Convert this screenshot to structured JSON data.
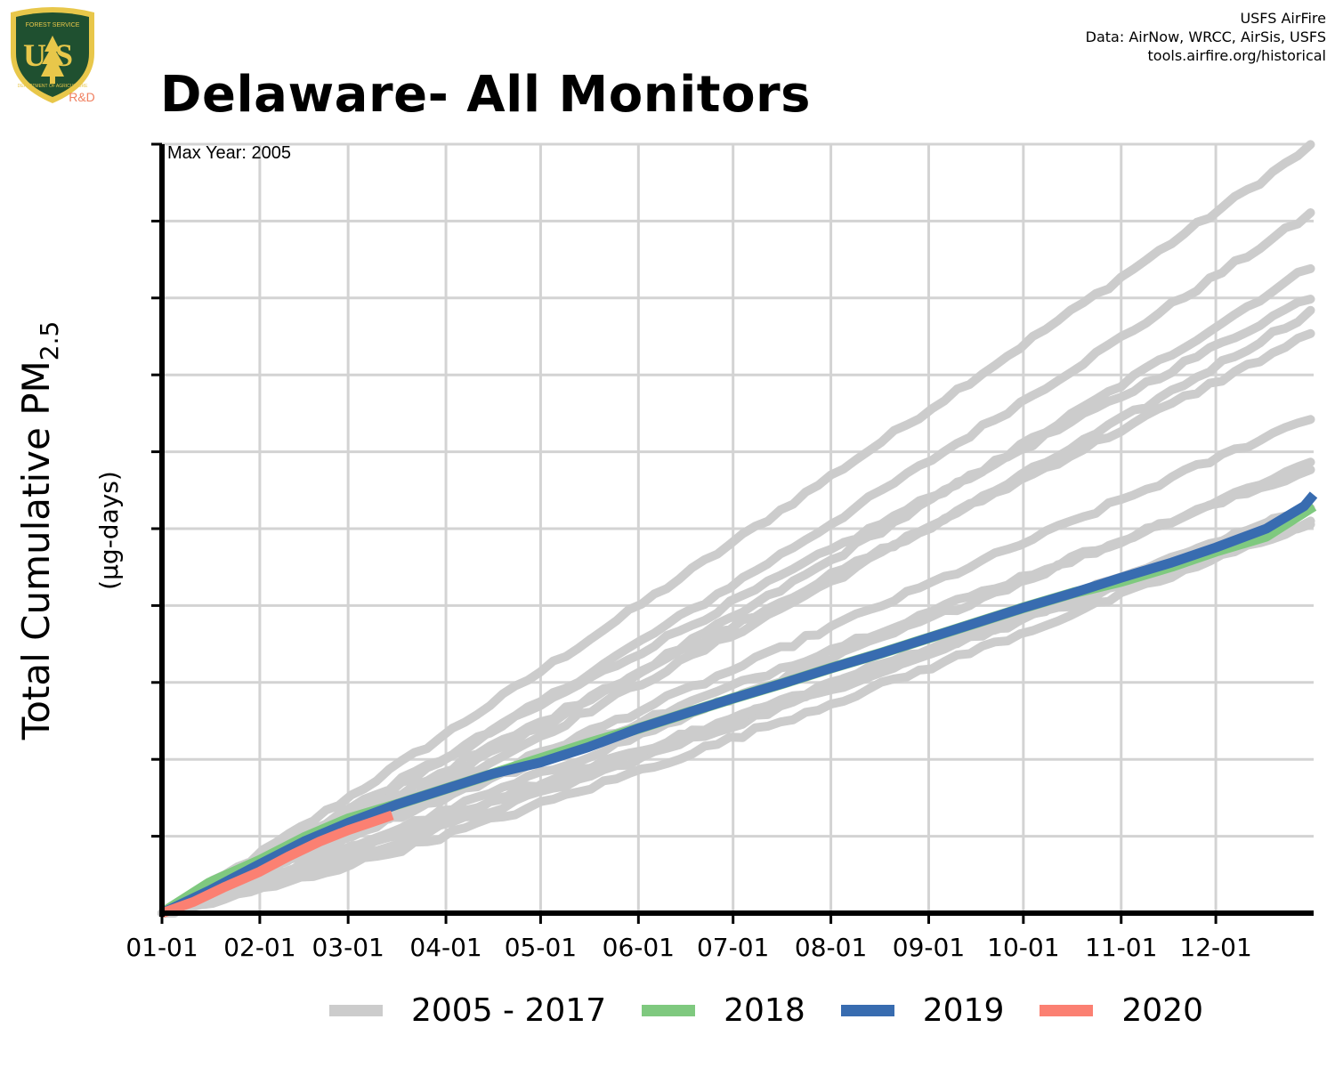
{
  "header": {
    "title": "Delaware- All Monitors",
    "credits": [
      "USFS AirFire",
      "Data: AirNow, WRCC, AirSis, USFS",
      "tools.airfire.org/historical"
    ],
    "logo": {
      "shield_text": "US",
      "top_text": "FOREST SERVICE",
      "bottom_text": "DEPARTMENT OF AGRICULTURE",
      "tag": "R&D"
    }
  },
  "colors": {
    "history": "#cccccc",
    "y2018": "#7fc97f",
    "y2019": "#386cb0",
    "y2020": "#fb8072",
    "grid": "#d3d3d3",
    "axis": "#000000",
    "logo_green": "#1f5030",
    "logo_gold": "#e8c74a",
    "tag": "#f08060"
  },
  "chart_data": {
    "type": "line",
    "annotation": "Max Year: 2005",
    "ylabel_main": "Total Cumulative PM",
    "ylabel_sub": "2.5",
    "ylabel_units": "(µg-days)",
    "x_ticks": [
      "01-01",
      "02-01",
      "03-01",
      "04-01",
      "05-01",
      "06-01",
      "07-01",
      "08-01",
      "09-01",
      "10-01",
      "11-01",
      "12-01"
    ],
    "x_tick_days": [
      0,
      31,
      59,
      90,
      120,
      151,
      181,
      212,
      243,
      273,
      304,
      334
    ],
    "xlim": [
      0,
      365
    ],
    "ylim": [
      0,
      10.2
    ],
    "y_grid_count": 10,
    "grid": true,
    "legend": {
      "position": "bottom",
      "entries": [
        "2005 - 2017",
        "2018",
        "2019",
        "2020"
      ]
    },
    "history_end_values": [
      10.2,
      9.3,
      8.6,
      8.2,
      8.0,
      7.7,
      6.6,
      6.0,
      5.9,
      5.4,
      5.4,
      5.2,
      5.2
    ],
    "history_shape_exponent": [
      1.04,
      1.08,
      1.12,
      0.98,
      1.1,
      1.0,
      1.02,
      1.06,
      0.96,
      1.1,
      1.05,
      1.15,
      1.0
    ],
    "series": [
      {
        "name": "2018",
        "x": [
          0,
          15,
          31,
          45,
          59,
          75,
          90,
          105,
          120,
          135,
          151,
          166,
          181,
          197,
          212,
          228,
          243,
          258,
          273,
          289,
          304,
          320,
          334,
          350,
          365
        ],
        "y": [
          0,
          0.4,
          0.7,
          1.0,
          1.25,
          1.45,
          1.65,
          1.85,
          2.05,
          2.25,
          2.45,
          2.65,
          2.85,
          3.05,
          3.25,
          3.45,
          3.65,
          3.85,
          4.05,
          4.25,
          4.4,
          4.6,
          4.8,
          5.0,
          5.4
        ]
      },
      {
        "name": "2019",
        "x": [
          0,
          15,
          31,
          45,
          59,
          75,
          90,
          105,
          120,
          135,
          151,
          166,
          181,
          197,
          212,
          228,
          243,
          258,
          273,
          289,
          304,
          320,
          334,
          350,
          362,
          365
        ],
        "y": [
          0,
          0.3,
          0.65,
          0.95,
          1.2,
          1.45,
          1.65,
          1.85,
          2.0,
          2.2,
          2.45,
          2.65,
          2.85,
          3.05,
          3.25,
          3.45,
          3.65,
          3.85,
          4.05,
          4.25,
          4.45,
          4.65,
          4.85,
          5.1,
          5.4,
          5.55
        ]
      },
      {
        "name": "2020",
        "x": [
          0,
          10,
          20,
          31,
          40,
          50,
          59,
          66,
          73
        ],
        "y": [
          0,
          0.15,
          0.35,
          0.55,
          0.75,
          0.95,
          1.1,
          1.2,
          1.3
        ]
      }
    ]
  }
}
